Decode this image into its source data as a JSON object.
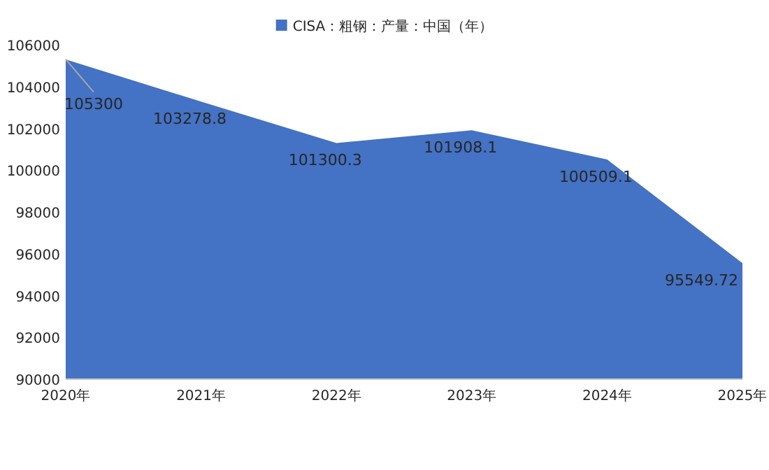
{
  "chart_data": {
    "type": "area",
    "categories": [
      "2020年",
      "2021年",
      "2022年",
      "2023年",
      "2024年",
      "2025年"
    ],
    "series": [
      {
        "name": "CISA：粗钢：产量：中国（年）",
        "color": "#4472c4",
        "values": [
          105300,
          103278.8,
          101300.3,
          101908.1,
          100509.1,
          95549.72
        ]
      }
    ],
    "ylim": [
      90000,
      106000
    ],
    "yticks": [
      90000,
      92000,
      94000,
      96000,
      98000,
      100000,
      102000,
      104000,
      106000
    ],
    "data_labels": true,
    "legend": "top",
    "grid": false
  }
}
